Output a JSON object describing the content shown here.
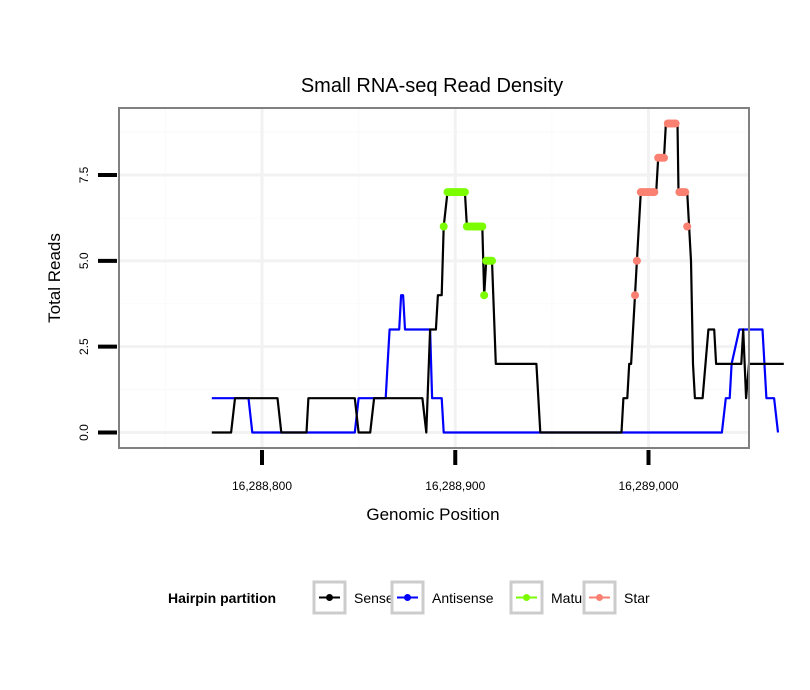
{
  "chart_data": {
    "type": "line",
    "title": "Small RNA-seq Read Density",
    "xlabel": "Genomic Position",
    "ylabel": "Total Reads",
    "xlim": [
      16288726,
      16289052
    ],
    "ylim": [
      -0.45,
      9.45
    ],
    "x_ticks": [
      16288800,
      16288900,
      16289000
    ],
    "x_tick_labels": [
      "16,288,800",
      "16,288,900",
      "16,289,000"
    ],
    "y_ticks": [
      0,
      2.5,
      5,
      7.5
    ],
    "y_tick_labels": [
      "0.0",
      "2.5",
      "5.0",
      "7.5"
    ],
    "grid": true,
    "legend": {
      "title": "Hairpin partition",
      "position": "bottom",
      "entries": [
        {
          "label": "Sense",
          "color": "#000000"
        },
        {
          "label": "Antisense",
          "color": "#0000ff"
        },
        {
          "label": "Mature",
          "color": "#7cfc00"
        },
        {
          "label": "Star",
          "color": "#fa8072"
        }
      ]
    },
    "series": [
      {
        "name": "Sense",
        "color": "#000000",
        "points": [
          [
            16288774,
            0
          ],
          [
            16288784,
            0
          ],
          [
            16288786,
            1
          ],
          [
            16288808,
            1
          ],
          [
            16288810,
            0
          ],
          [
            16288823,
            0
          ],
          [
            16288824,
            1
          ],
          [
            16288848,
            1
          ],
          [
            16288850,
            0
          ],
          [
            16288856,
            0
          ],
          [
            16288858,
            1
          ],
          [
            16288883,
            1
          ],
          [
            16288885,
            0
          ],
          [
            16288887,
            3
          ],
          [
            16288890,
            3
          ],
          [
            16288891,
            4
          ],
          [
            16288893,
            4
          ],
          [
            16288894,
            6
          ],
          [
            16288896,
            7
          ],
          [
            16288905,
            7
          ],
          [
            16288906,
            6
          ],
          [
            16288914,
            6
          ],
          [
            16288915,
            4
          ],
          [
            16288916,
            5
          ],
          [
            16288919,
            5
          ],
          [
            16288921,
            2
          ],
          [
            16288942,
            2
          ],
          [
            16288944,
            0
          ],
          [
            16288986,
            0
          ],
          [
            16288987,
            1
          ],
          [
            16288989,
            1
          ],
          [
            16288990,
            2
          ],
          [
            16288991,
            2
          ],
          [
            16288993,
            4
          ],
          [
            16288994,
            5
          ],
          [
            16288996,
            7
          ],
          [
            16289004,
            7
          ],
          [
            16289005,
            8
          ],
          [
            16289008,
            8
          ],
          [
            16289009,
            9
          ],
          [
            16289015,
            9
          ],
          [
            16289015.5,
            7
          ],
          [
            16289020,
            7
          ],
          [
            16289021,
            6
          ],
          [
            16289022,
            5
          ],
          [
            16289023,
            2
          ],
          [
            16289024,
            1
          ],
          [
            16289028,
            1
          ],
          [
            16289031,
            3
          ],
          [
            16289034,
            3
          ],
          [
            16289035,
            2
          ],
          [
            16289048,
            2
          ],
          [
            16289049,
            3
          ],
          [
            16289050.5,
            1
          ],
          [
            16289052,
            2
          ],
          [
            16289070,
            2
          ]
        ]
      },
      {
        "name": "Antisense",
        "color": "#0000ff",
        "points": [
          [
            16288774,
            1
          ],
          [
            16288793,
            1
          ],
          [
            16288795,
            0
          ],
          [
            16288848,
            0
          ],
          [
            16288850,
            1
          ],
          [
            16288864,
            1
          ],
          [
            16288865,
            2
          ],
          [
            16288866,
            3
          ],
          [
            16288871,
            3
          ],
          [
            16288872,
            4
          ],
          [
            16288873,
            4
          ],
          [
            16288874,
            3
          ],
          [
            16288887,
            3
          ],
          [
            16288888,
            1
          ],
          [
            16288893,
            1
          ],
          [
            16288894,
            0
          ],
          [
            16289038,
            0
          ],
          [
            16289040,
            1
          ],
          [
            16289042,
            1
          ],
          [
            16289043,
            2
          ],
          [
            16289047,
            3
          ],
          [
            16289059,
            3
          ],
          [
            16289061,
            1
          ],
          [
            16289065,
            1
          ],
          [
            16289067,
            0
          ]
        ]
      },
      {
        "name": "Mature",
        "color": "#7cfc00",
        "points": [
          [
            16288894,
            6
          ],
          [
            16288896,
            7
          ],
          [
            16288897,
            7
          ],
          [
            16288898,
            7
          ],
          [
            16288899,
            7
          ],
          [
            16288900,
            7
          ],
          [
            16288901,
            7
          ],
          [
            16288902,
            7
          ],
          [
            16288903,
            7
          ],
          [
            16288904,
            7
          ],
          [
            16288905,
            7
          ],
          [
            16288906,
            6
          ],
          [
            16288907,
            6
          ],
          [
            16288908,
            6
          ],
          [
            16288909,
            6
          ],
          [
            16288910,
            6
          ],
          [
            16288911,
            6
          ],
          [
            16288912,
            6
          ],
          [
            16288913,
            6
          ],
          [
            16288914,
            6
          ],
          [
            16288915,
            4
          ],
          [
            16288916,
            5
          ],
          [
            16288917,
            5
          ],
          [
            16288918,
            5
          ],
          [
            16288919,
            5
          ]
        ]
      },
      {
        "name": "Star",
        "color": "#fa8072",
        "points": [
          [
            16288993,
            4
          ],
          [
            16288994,
            5
          ],
          [
            16288996,
            7
          ],
          [
            16288997,
            7
          ],
          [
            16288998,
            7
          ],
          [
            16288999,
            7
          ],
          [
            16289000,
            7
          ],
          [
            16289001,
            7
          ],
          [
            16289002,
            7
          ],
          [
            16289003,
            7
          ],
          [
            16289005,
            8
          ],
          [
            16289006,
            8
          ],
          [
            16289007,
            8
          ],
          [
            16289008,
            8
          ],
          [
            16289010,
            9
          ],
          [
            16289011,
            9
          ],
          [
            16289012,
            9
          ],
          [
            16289013,
            9
          ],
          [
            16289014,
            9
          ],
          [
            16289016,
            7
          ],
          [
            16289017,
            7
          ],
          [
            16289018,
            7
          ],
          [
            16289019,
            7
          ],
          [
            16289020,
            6
          ]
        ]
      }
    ]
  }
}
